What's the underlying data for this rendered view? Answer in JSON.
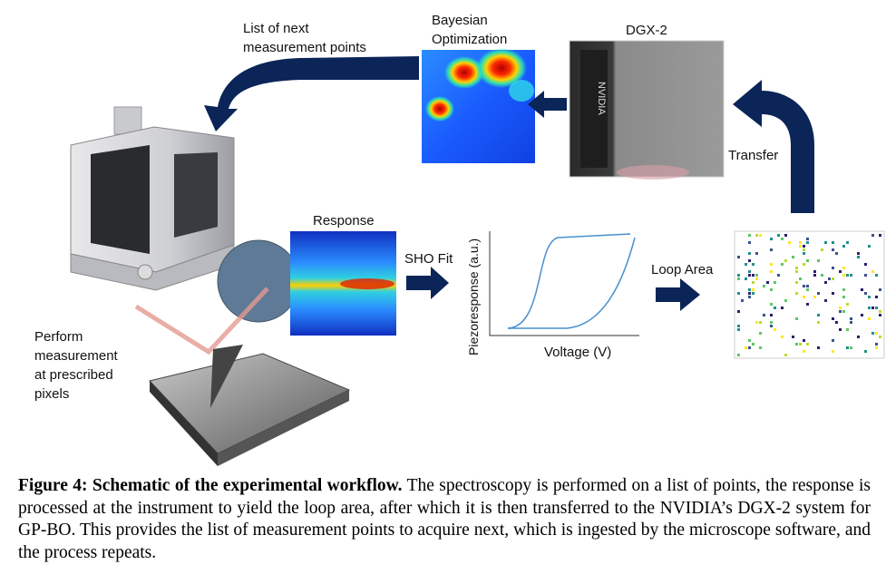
{
  "labels": {
    "next_points": [
      "List of next",
      "measurement points"
    ],
    "bayesian": [
      "Bayesian",
      "Optimization"
    ],
    "dgx": "DGX-2",
    "transfer": "Transfer",
    "response": "Response",
    "sho_fit": "SHO Fit",
    "loop_area": "Loop Area",
    "voltage": "Voltage (V)",
    "piezo": "Piezoresponse (a.u.)",
    "perform": [
      "Perform",
      "measurement",
      "at prescribed",
      "pixels"
    ]
  },
  "dgx_logo": "NVIDIA",
  "caption": {
    "title": "Figure 4: Schematic of the experimental workflow.",
    "text": "The spectroscopy is performed on a list of points, the response is processed at the instrument to yield the loop area, after which it is then transferred to the NVIDIA’s DGX-2 system for GP-BO. This provides the list of measurement points to acquire next, which is ingested by the microscope software, and the process repeats."
  }
}
